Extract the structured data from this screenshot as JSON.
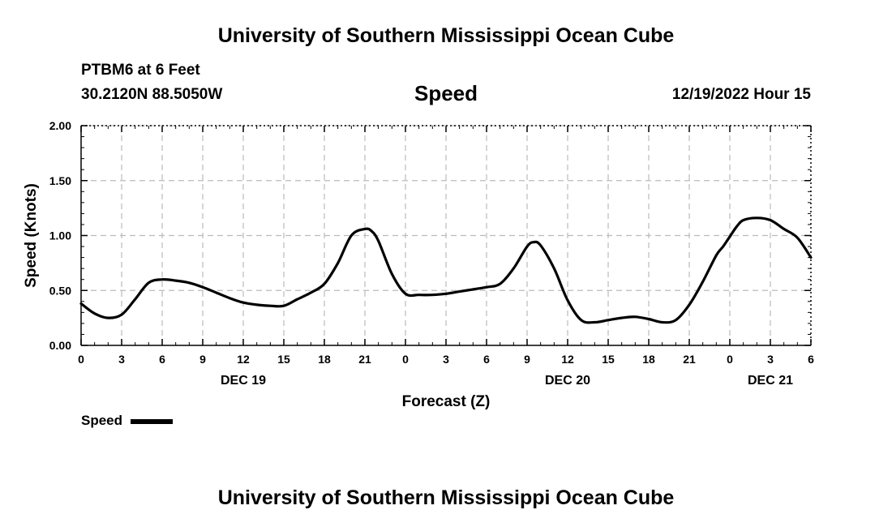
{
  "header": {
    "title_top": "University of Southern Mississippi Ocean Cube",
    "station": "PTBM6 at 6 Feet",
    "coordinates": "30.2120N  88.5050W",
    "variable": "Speed",
    "issued": "12/19/2022 Hour 15",
    "title_bottom": "University of Southern Mississippi Ocean Cube"
  },
  "legend": {
    "label": "Speed"
  },
  "chart_data": {
    "type": "line",
    "title": "Speed",
    "xlabel": "Forecast (Z)",
    "ylabel": "Speed (Knots)",
    "ylim": [
      0,
      2
    ],
    "xlim": [
      0,
      54
    ],
    "yticks": [
      "0.00",
      "0.50",
      "1.00",
      "1.50",
      "2.00"
    ],
    "xtick_hours": [
      0,
      3,
      6,
      9,
      12,
      15,
      18,
      21,
      24,
      27,
      30,
      33,
      36,
      39,
      42,
      45,
      48,
      51,
      54
    ],
    "xtick_labels": [
      "0",
      "3",
      "6",
      "9",
      "12",
      "15",
      "18",
      "21",
      "0",
      "3",
      "6",
      "9",
      "12",
      "15",
      "18",
      "21",
      "0",
      "3",
      "6"
    ],
    "day_labels": [
      {
        "hour": 12,
        "label": "DEC 19"
      },
      {
        "hour": 36,
        "label": "DEC 20"
      },
      {
        "hour": 51,
        "label": "DEC 21"
      }
    ],
    "grid": true,
    "series": [
      {
        "name": "Speed",
        "color": "#000000",
        "x": [
          0,
          1,
          2,
          3,
          4,
          5,
          6,
          7,
          8,
          9,
          10,
          11,
          12,
          13,
          14,
          15,
          16,
          17,
          18,
          19,
          20,
          21,
          21.5,
          22,
          23,
          24,
          25,
          26,
          27,
          28,
          29,
          30,
          31,
          32,
          33,
          33.5,
          34,
          35,
          36,
          37,
          38,
          39,
          40,
          41,
          42,
          43,
          44,
          45,
          46,
          47,
          47.5,
          48,
          48.5,
          49,
          50,
          51,
          52,
          53,
          54
        ],
        "y": [
          0.38,
          0.29,
          0.25,
          0.28,
          0.42,
          0.57,
          0.6,
          0.59,
          0.57,
          0.53,
          0.48,
          0.43,
          0.39,
          0.37,
          0.36,
          0.36,
          0.42,
          0.48,
          0.56,
          0.75,
          1.0,
          1.06,
          1.04,
          0.95,
          0.65,
          0.47,
          0.46,
          0.46,
          0.47,
          0.49,
          0.51,
          0.53,
          0.56,
          0.7,
          0.9,
          0.94,
          0.91,
          0.7,
          0.41,
          0.23,
          0.21,
          0.23,
          0.25,
          0.26,
          0.24,
          0.21,
          0.23,
          0.37,
          0.58,
          0.82,
          0.9,
          0.99,
          1.08,
          1.14,
          1.16,
          1.14,
          1.06,
          0.98,
          0.8
        ]
      }
    ]
  }
}
